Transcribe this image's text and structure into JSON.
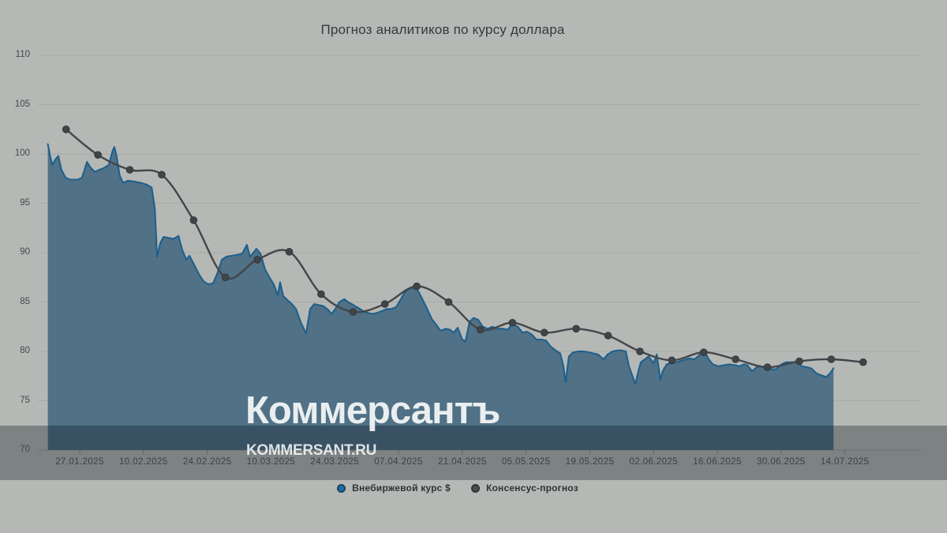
{
  "title": "Прогноз аналитиков по курсу доллара",
  "watermark": {
    "logo": "Коммерсантъ",
    "site": "KOMMERSANT.RU"
  },
  "legend": [
    {
      "label": "Внебиржевой курс $",
      "color": "#1e6da5"
    },
    {
      "label": "Консенсус-прогноз",
      "color": "#4b5053"
    }
  ],
  "colors": {
    "background": "#b5b8b5",
    "gridline": "#a7aaa7",
    "baseline": "#9ba09e",
    "tick": "#8a8f8d",
    "area_fill": "#507186",
    "area_line": "#1b5f8d",
    "consensus_line": "#43474a",
    "consensus_dot": "#404548",
    "overlay_band": "rgba(13,22,28,0.33)",
    "watermark_white": "rgba(255,255,255,0.88)"
  },
  "chart_data": {
    "type": "area",
    "title": "Прогноз аналитиков по курсу доллара",
    "xlabel": "",
    "ylabel": "",
    "ylim": [
      70,
      110
    ],
    "grid": "horizontal",
    "legend_position": "bottom-center",
    "y_ticks": [
      70,
      75,
      80,
      85,
      90,
      95,
      100,
      105,
      110
    ],
    "x_ticks": [
      {
        "label": "27.01.2025",
        "day": 7
      },
      {
        "label": "10.02.2025",
        "day": 21
      },
      {
        "label": "24.02.2025",
        "day": 35
      },
      {
        "label": "10.03.2025",
        "day": 49
      },
      {
        "label": "24.03.2025",
        "day": 63
      },
      {
        "label": "07.04.2025",
        "day": 77
      },
      {
        "label": "21.04.2025",
        "day": 91
      },
      {
        "label": "05.05.2025",
        "day": 105
      },
      {
        "label": "19.05.2025",
        "day": 119
      },
      {
        "label": "02.06.2025",
        "day": 133
      },
      {
        "label": "16.06.2025",
        "day": 147
      },
      {
        "label": "30.06.2025",
        "day": 161
      },
      {
        "label": "14.07.2025",
        "day": 175
      }
    ],
    "timeline": {
      "day0_date": "20.01.2025",
      "last_day": 179
    },
    "series": [
      {
        "name": "Внебиржевой курс $",
        "type": "area",
        "points": [
          [
            0,
            101.0
          ],
          [
            0.5,
            99.8
          ],
          [
            1,
            98.9
          ],
          [
            1.6,
            99.4
          ],
          [
            2.3,
            99.8
          ],
          [
            3,
            98.4
          ],
          [
            3.9,
            97.6
          ],
          [
            5,
            97.4
          ],
          [
            6.5,
            97.4
          ],
          [
            7.5,
            97.6
          ],
          [
            8.6,
            99.2
          ],
          [
            9.4,
            98.6
          ],
          [
            10.3,
            98.2
          ],
          [
            11.3,
            98.4
          ],
          [
            12.4,
            98.6
          ],
          [
            13.4,
            98.9
          ],
          [
            14.2,
            100.3
          ],
          [
            14.6,
            100.7
          ],
          [
            15.1,
            99.8
          ],
          [
            15.8,
            97.8
          ],
          [
            16.5,
            97.1
          ],
          [
            17.6,
            97.3
          ],
          [
            19,
            97.2
          ],
          [
            20.3,
            97.1
          ],
          [
            21.7,
            96.9
          ],
          [
            22.8,
            96.6
          ],
          [
            23.5,
            94.5
          ],
          [
            24,
            89.6
          ],
          [
            24.7,
            91.0
          ],
          [
            25.4,
            91.6
          ],
          [
            26.6,
            91.5
          ],
          [
            27.6,
            91.4
          ],
          [
            28.7,
            91.7
          ],
          [
            29.5,
            90.3
          ],
          [
            30.4,
            89.3
          ],
          [
            31.1,
            89.7
          ],
          [
            32.1,
            88.8
          ],
          [
            33.2,
            87.8
          ],
          [
            34.2,
            87.1
          ],
          [
            35.2,
            86.8
          ],
          [
            36.3,
            86.9
          ],
          [
            37.3,
            88.0
          ],
          [
            38.2,
            89.3
          ],
          [
            39.2,
            89.6
          ],
          [
            40.4,
            89.7
          ],
          [
            41.7,
            89.8
          ],
          [
            42.7,
            89.9
          ],
          [
            43.7,
            90.8
          ],
          [
            44.4,
            89.6
          ],
          [
            45.3,
            90.1
          ],
          [
            45.8,
            90.4
          ],
          [
            46.7,
            89.9
          ],
          [
            47.7,
            88.3
          ],
          [
            48.8,
            87.4
          ],
          [
            49.6,
            86.8
          ],
          [
            50.5,
            85.7
          ],
          [
            51,
            87.0
          ],
          [
            51.7,
            85.6
          ],
          [
            52.6,
            85.2
          ],
          [
            53.6,
            84.8
          ],
          [
            54.5,
            84.3
          ],
          [
            55.5,
            83.0
          ],
          [
            56.7,
            81.8
          ],
          [
            57.6,
            84.3
          ],
          [
            58.5,
            84.8
          ],
          [
            59.5,
            84.7
          ],
          [
            60.5,
            84.6
          ],
          [
            61.6,
            84.2
          ],
          [
            62.3,
            83.8
          ],
          [
            63.1,
            84.3
          ],
          [
            64,
            85.0
          ],
          [
            65.1,
            85.3
          ],
          [
            65.9,
            85.0
          ],
          [
            67.1,
            84.7
          ],
          [
            68.2,
            84.4
          ],
          [
            69.2,
            84.1
          ],
          [
            70.2,
            83.9
          ],
          [
            71.3,
            83.8
          ],
          [
            72.3,
            83.9
          ],
          [
            73.4,
            84.1
          ],
          [
            74.4,
            84.3
          ],
          [
            75.4,
            84.3
          ],
          [
            76.5,
            84.5
          ],
          [
            77.5,
            85.3
          ],
          [
            78.4,
            86.0
          ],
          [
            79.6,
            86.4
          ],
          [
            81,
            86.4
          ],
          [
            81.9,
            85.6
          ],
          [
            83.1,
            84.5
          ],
          [
            84.3,
            83.3
          ],
          [
            85.3,
            82.7
          ],
          [
            86.2,
            82.1
          ],
          [
            87.4,
            82.3
          ],
          [
            88.3,
            82.2
          ],
          [
            89.1,
            81.9
          ],
          [
            90,
            82.4
          ],
          [
            91,
            81.2
          ],
          [
            91.7,
            81.0
          ],
          [
            92.6,
            83.0
          ],
          [
            93.5,
            83.4
          ],
          [
            94.5,
            83.2
          ],
          [
            95.5,
            82.5
          ],
          [
            96.6,
            82.3
          ],
          [
            97.6,
            82.5
          ],
          [
            98.7,
            82.3
          ],
          [
            99.9,
            82.3
          ],
          [
            100.9,
            82.2
          ],
          [
            102.1,
            82.8
          ],
          [
            103.2,
            82.5
          ],
          [
            104.2,
            81.9
          ],
          [
            105.2,
            82.0
          ],
          [
            106.3,
            81.7
          ],
          [
            107.3,
            81.2
          ],
          [
            108.4,
            81.2
          ],
          [
            109.4,
            81.1
          ],
          [
            110.4,
            80.5
          ],
          [
            111.5,
            80.1
          ],
          [
            112.5,
            79.8
          ],
          [
            113.2,
            78.5
          ],
          [
            113.7,
            76.9
          ],
          [
            114.4,
            79.5
          ],
          [
            115.3,
            79.9
          ],
          [
            116.5,
            80.0
          ],
          [
            117.7,
            80.0
          ],
          [
            118.8,
            79.9
          ],
          [
            119.8,
            79.8
          ],
          [
            120.8,
            79.7
          ],
          [
            122,
            79.2
          ],
          [
            122.9,
            79.7
          ],
          [
            124,
            80.0
          ],
          [
            125,
            80.1
          ],
          [
            126,
            80.1
          ],
          [
            126.9,
            80.0
          ],
          [
            127.6,
            78.5
          ],
          [
            129,
            76.7
          ],
          [
            129.7,
            78.1
          ],
          [
            130.2,
            78.9
          ],
          [
            131.1,
            79.2
          ],
          [
            131.9,
            79.5
          ],
          [
            133,
            78.8
          ],
          [
            133.7,
            79.7
          ],
          [
            134.5,
            77.1
          ],
          [
            135,
            78.0
          ],
          [
            135.9,
            78.7
          ],
          [
            136.8,
            78.8
          ],
          [
            138,
            78.9
          ],
          [
            139.4,
            79.1
          ],
          [
            140.8,
            79.3
          ],
          [
            142,
            79.2
          ],
          [
            143,
            79.6
          ],
          [
            144.1,
            80.1
          ],
          [
            145.1,
            79.2
          ],
          [
            146,
            78.7
          ],
          [
            147.2,
            78.5
          ],
          [
            148.4,
            78.6
          ],
          [
            149.6,
            78.7
          ],
          [
            150.8,
            78.6
          ],
          [
            151.9,
            78.5
          ],
          [
            152.9,
            78.7
          ],
          [
            153.6,
            78.6
          ],
          [
            154.6,
            78.0
          ],
          [
            155.9,
            78.5
          ],
          [
            156.9,
            78.4
          ],
          [
            158.1,
            78.3
          ],
          [
            159.1,
            78.2
          ],
          [
            159.9,
            78.2
          ],
          [
            161.1,
            78.7
          ],
          [
            162.1,
            78.9
          ],
          [
            163.3,
            78.9
          ],
          [
            164.5,
            78.9
          ],
          [
            165.6,
            78.5
          ],
          [
            166.6,
            78.4
          ],
          [
            167.6,
            78.3
          ],
          [
            168.7,
            77.8
          ],
          [
            169.7,
            77.6
          ],
          [
            170.9,
            77.4
          ],
          [
            171.8,
            77.8
          ],
          [
            172.5,
            78.3
          ]
        ]
      },
      {
        "name": "Консенсус-прогноз",
        "type": "line",
        "dates": [
          "24.01",
          "31.01",
          "07.02",
          "14.02",
          "21.02",
          "28.02",
          "07.03",
          "14.03",
          "21.03",
          "28.03",
          "04.04",
          "11.04",
          "18.04",
          "25.04",
          "02.05",
          "09.05",
          "16.05",
          "23.05",
          "30.05",
          "06.06",
          "13.06",
          "20.06",
          "27.06",
          "04.07",
          "11.07",
          "18.07"
        ],
        "days": [
          4,
          11,
          18,
          25,
          32,
          39,
          46,
          53,
          60,
          67,
          74,
          81,
          88,
          95,
          102,
          109,
          116,
          123,
          130,
          137,
          144,
          151,
          158,
          165,
          172,
          179
        ],
        "values": [
          102.5,
          99.9,
          98.4,
          97.9,
          93.3,
          87.5,
          89.3,
          90.1,
          85.8,
          84.0,
          84.8,
          86.6,
          85.0,
          82.2,
          82.9,
          81.9,
          82.3,
          81.6,
          80.0,
          79.1,
          79.9,
          79.2,
          78.4,
          79.0,
          79.2,
          78.9
        ]
      }
    ]
  }
}
